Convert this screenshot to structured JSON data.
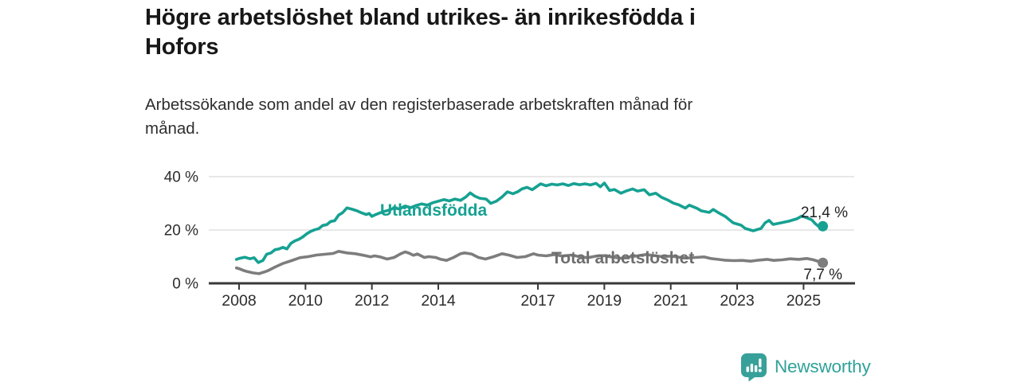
{
  "page": {
    "title_lines": [
      "Högre arbetslöshet bland utrikes- än inrikesfödda i",
      "Hofors"
    ],
    "subtitle_lines": [
      "Arbetssökande som andel av den registerbaserade arbetskraften månad för",
      "månad."
    ]
  },
  "branding": {
    "logo_text": "Newsworthy",
    "logo_icon": "bar-chart-speech-bubble-icon",
    "logo_color": "#2fa29a"
  },
  "chart_data": {
    "type": "line",
    "title": "Högre arbetslöshet bland utrikes- än inrikesfödda i Hofors",
    "subtitle": "Arbetssökande som andel av den registerbaserade arbetskraften månad för månad.",
    "unit": "%",
    "grid": "horizontal",
    "legend_position": "inline-labels",
    "x_axis": {
      "tick_years": [
        2008,
        2010,
        2012,
        2014,
        2017,
        2019,
        2021,
        2023,
        2025
      ],
      "tick_labels": [
        "2008",
        "2010",
        "2012",
        "2014",
        "2017",
        "2019",
        "2021",
        "2023",
        "2025"
      ],
      "range_years": [
        2007.1,
        2026.5
      ]
    },
    "y_axis": {
      "tick_values": [
        0,
        20,
        40
      ],
      "tick_labels": [
        "0 %",
        "20 %",
        "40 %"
      ],
      "range": [
        0,
        44
      ]
    },
    "axis_color": "#383838",
    "grid_color": "#d9d9d9",
    "tick_text_color": "#2d2d2d",
    "end_label_color": "#222222",
    "series": [
      {
        "name": "Utlandsfödda",
        "color": "#16a192",
        "end_label": "21,4 %",
        "end_value": 21.4,
        "points": [
          [
            2007.92,
            9.0
          ],
          [
            2008.0,
            9.3
          ],
          [
            2008.17,
            9.8
          ],
          [
            2008.33,
            9.2
          ],
          [
            2008.45,
            9.6
          ],
          [
            2008.58,
            7.8
          ],
          [
            2008.72,
            8.6
          ],
          [
            2008.83,
            10.9
          ],
          [
            2008.96,
            11.4
          ],
          [
            2009.08,
            12.6
          ],
          [
            2009.2,
            12.9
          ],
          [
            2009.32,
            13.5
          ],
          [
            2009.44,
            12.9
          ],
          [
            2009.56,
            15.0
          ],
          [
            2009.68,
            15.9
          ],
          [
            2009.8,
            16.5
          ],
          [
            2009.92,
            17.4
          ],
          [
            2010.04,
            18.6
          ],
          [
            2010.16,
            19.5
          ],
          [
            2010.28,
            20.1
          ],
          [
            2010.4,
            20.5
          ],
          [
            2010.52,
            21.7
          ],
          [
            2010.64,
            22.0
          ],
          [
            2010.76,
            23.2
          ],
          [
            2010.88,
            23.5
          ],
          [
            2011.0,
            25.6
          ],
          [
            2011.12,
            26.5
          ],
          [
            2011.25,
            28.3
          ],
          [
            2011.4,
            27.8
          ],
          [
            2011.55,
            27.2
          ],
          [
            2011.7,
            26.4
          ],
          [
            2011.83,
            25.8
          ],
          [
            2011.92,
            26.2
          ],
          [
            2012.0,
            25.1
          ],
          [
            2012.1,
            25.7
          ],
          [
            2012.2,
            26.2
          ],
          [
            2012.33,
            26.8
          ],
          [
            2012.5,
            27.4
          ],
          [
            2012.67,
            28.2
          ],
          [
            2012.83,
            27.9
          ],
          [
            2013.0,
            29.0
          ],
          [
            2013.17,
            28.4
          ],
          [
            2013.33,
            29.2
          ],
          [
            2013.5,
            29.8
          ],
          [
            2013.67,
            29.3
          ],
          [
            2013.83,
            30.2
          ],
          [
            2014.0,
            30.8
          ],
          [
            2014.17,
            31.4
          ],
          [
            2014.33,
            30.9
          ],
          [
            2014.5,
            31.6
          ],
          [
            2014.67,
            31.1
          ],
          [
            2014.83,
            32.4
          ],
          [
            2014.96,
            33.9
          ],
          [
            2015.1,
            32.7
          ],
          [
            2015.25,
            31.9
          ],
          [
            2015.44,
            31.6
          ],
          [
            2015.58,
            30.0
          ],
          [
            2015.75,
            30.8
          ],
          [
            2015.92,
            32.4
          ],
          [
            2016.08,
            34.3
          ],
          [
            2016.25,
            33.6
          ],
          [
            2016.4,
            34.4
          ],
          [
            2016.52,
            35.4
          ],
          [
            2016.67,
            36.0
          ],
          [
            2016.83,
            35.1
          ],
          [
            2017.08,
            37.3
          ],
          [
            2017.25,
            36.6
          ],
          [
            2017.42,
            37.2
          ],
          [
            2017.58,
            36.9
          ],
          [
            2017.75,
            37.3
          ],
          [
            2017.92,
            36.7
          ],
          [
            2018.08,
            37.4
          ],
          [
            2018.25,
            37.0
          ],
          [
            2018.42,
            37.3
          ],
          [
            2018.58,
            36.9
          ],
          [
            2018.75,
            37.5
          ],
          [
            2018.88,
            36.2
          ],
          [
            2019.0,
            37.6
          ],
          [
            2019.16,
            34.8
          ],
          [
            2019.3,
            35.2
          ],
          [
            2019.5,
            33.8
          ],
          [
            2019.65,
            34.6
          ],
          [
            2019.85,
            35.4
          ],
          [
            2020.0,
            34.6
          ],
          [
            2020.2,
            35.1
          ],
          [
            2020.36,
            33.2
          ],
          [
            2020.55,
            33.8
          ],
          [
            2020.72,
            32.3
          ],
          [
            2020.9,
            31.3
          ],
          [
            2021.08,
            30.1
          ],
          [
            2021.25,
            29.4
          ],
          [
            2021.44,
            28.2
          ],
          [
            2021.56,
            29.3
          ],
          [
            2021.8,
            28.1
          ],
          [
            2021.92,
            27.2
          ],
          [
            2022.16,
            26.6
          ],
          [
            2022.28,
            27.7
          ],
          [
            2022.42,
            26.6
          ],
          [
            2022.64,
            25.1
          ],
          [
            2022.88,
            22.7
          ],
          [
            2023.12,
            21.8
          ],
          [
            2023.24,
            20.6
          ],
          [
            2023.48,
            19.7
          ],
          [
            2023.72,
            20.6
          ],
          [
            2023.84,
            22.7
          ],
          [
            2023.96,
            23.6
          ],
          [
            2024.08,
            22.1
          ],
          [
            2024.32,
            22.7
          ],
          [
            2024.56,
            23.3
          ],
          [
            2024.8,
            24.2
          ],
          [
            2024.94,
            25.2
          ],
          [
            2025.08,
            24.7
          ],
          [
            2025.25,
            23.8
          ],
          [
            2025.35,
            22.4
          ],
          [
            2025.45,
            21.4
          ],
          [
            2025.52,
            21.0
          ],
          [
            2025.58,
            21.4
          ]
        ]
      },
      {
        "name": "Total arbetslöshet",
        "color": "#7d7d7d",
        "end_label": "7,7 %",
        "end_value": 7.7,
        "points": [
          [
            2007.92,
            5.8
          ],
          [
            2008.0,
            5.5
          ],
          [
            2008.12,
            4.9
          ],
          [
            2008.25,
            4.4
          ],
          [
            2008.42,
            3.9
          ],
          [
            2008.6,
            3.6
          ],
          [
            2008.75,
            4.2
          ],
          [
            2008.88,
            4.8
          ],
          [
            2009.08,
            6.1
          ],
          [
            2009.33,
            7.5
          ],
          [
            2009.58,
            8.5
          ],
          [
            2009.83,
            9.6
          ],
          [
            2010.08,
            10.0
          ],
          [
            2010.33,
            10.6
          ],
          [
            2010.58,
            10.9
          ],
          [
            2010.83,
            11.2
          ],
          [
            2011.0,
            12.0
          ],
          [
            2011.25,
            11.4
          ],
          [
            2011.5,
            11.1
          ],
          [
            2011.75,
            10.5
          ],
          [
            2011.96,
            9.9
          ],
          [
            2012.08,
            10.3
          ],
          [
            2012.25,
            9.9
          ],
          [
            2012.46,
            9.1
          ],
          [
            2012.67,
            9.7
          ],
          [
            2012.87,
            11.1
          ],
          [
            2013.0,
            11.8
          ],
          [
            2013.12,
            11.3
          ],
          [
            2013.25,
            10.5
          ],
          [
            2013.37,
            11.0
          ],
          [
            2013.58,
            9.7
          ],
          [
            2013.71,
            10.0
          ],
          [
            2013.92,
            9.7
          ],
          [
            2014.08,
            9.0
          ],
          [
            2014.25,
            8.6
          ],
          [
            2014.46,
            9.7
          ],
          [
            2014.67,
            11.1
          ],
          [
            2014.79,
            11.4
          ],
          [
            2015.0,
            11.0
          ],
          [
            2015.21,
            9.7
          ],
          [
            2015.42,
            9.1
          ],
          [
            2015.67,
            10.0
          ],
          [
            2015.92,
            11.1
          ],
          [
            2016.12,
            10.6
          ],
          [
            2016.37,
            9.7
          ],
          [
            2016.62,
            10.0
          ],
          [
            2016.87,
            11.1
          ],
          [
            2017.0,
            10.6
          ],
          [
            2017.25,
            10.3
          ],
          [
            2017.5,
            10.8
          ],
          [
            2017.75,
            10.2
          ],
          [
            2018.0,
            10.6
          ],
          [
            2018.25,
            10.0
          ],
          [
            2018.5,
            9.6
          ],
          [
            2018.75,
            10.2
          ],
          [
            2019.0,
            10.4
          ],
          [
            2019.25,
            9.8
          ],
          [
            2019.5,
            9.4
          ],
          [
            2019.75,
            9.9
          ],
          [
            2020.0,
            10.3
          ],
          [
            2020.25,
            10.8
          ],
          [
            2020.5,
            10.4
          ],
          [
            2020.75,
            10.0
          ],
          [
            2021.0,
            10.2
          ],
          [
            2021.25,
            9.8
          ],
          [
            2021.5,
            9.5
          ],
          [
            2021.75,
            9.7
          ],
          [
            2022.0,
            9.9
          ],
          [
            2022.2,
            9.3
          ],
          [
            2022.42,
            9.0
          ],
          [
            2022.62,
            8.7
          ],
          [
            2022.9,
            8.5
          ],
          [
            2023.15,
            8.6
          ],
          [
            2023.4,
            8.3
          ],
          [
            2023.65,
            8.7
          ],
          [
            2023.9,
            9.0
          ],
          [
            2024.1,
            8.6
          ],
          [
            2024.35,
            8.8
          ],
          [
            2024.6,
            9.2
          ],
          [
            2024.85,
            9.0
          ],
          [
            2025.1,
            9.3
          ],
          [
            2025.3,
            8.8
          ],
          [
            2025.45,
            8.2
          ],
          [
            2025.58,
            7.7
          ]
        ]
      }
    ]
  }
}
